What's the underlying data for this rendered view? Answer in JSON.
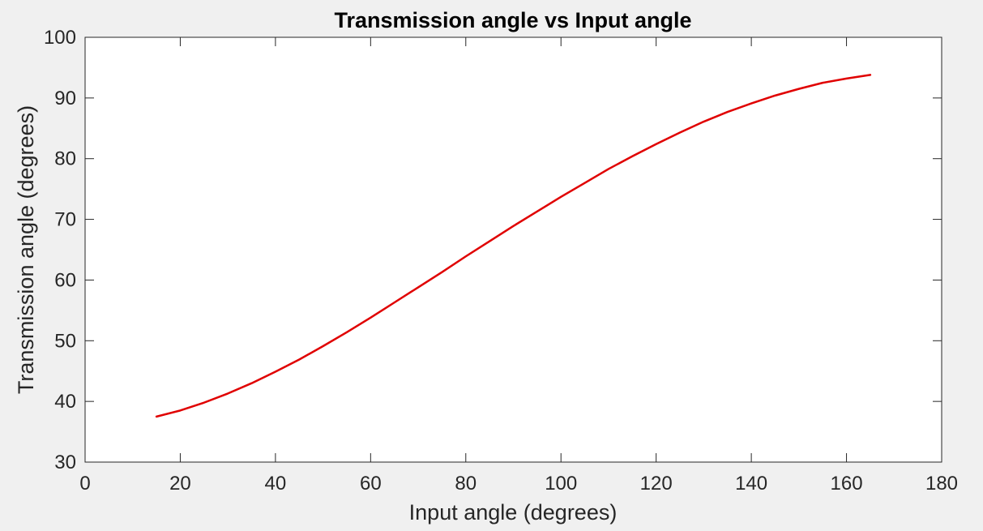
{
  "chart_data": {
    "type": "line",
    "title": "Transmission angle vs Input angle",
    "xlabel": "Input angle (degrees)",
    "ylabel": "Transmission angle (degrees)",
    "xlim": [
      0,
      180
    ],
    "ylim": [
      30,
      100
    ],
    "xticks": [
      0,
      20,
      40,
      60,
      80,
      100,
      120,
      140,
      160,
      180
    ],
    "yticks": [
      30,
      40,
      50,
      60,
      70,
      80,
      90,
      100
    ],
    "grid": false,
    "series": [
      {
        "color": "#e00000",
        "x": [
          15,
          20,
          25,
          30,
          35,
          40,
          45,
          50,
          55,
          60,
          65,
          70,
          75,
          80,
          85,
          90,
          95,
          100,
          105,
          110,
          115,
          120,
          125,
          130,
          135,
          140,
          145,
          150,
          155,
          160,
          165
        ],
        "y": [
          37.5,
          38.5,
          39.8,
          41.3,
          43.0,
          44.9,
          46.9,
          49.1,
          51.4,
          53.8,
          56.3,
          58.8,
          61.3,
          63.9,
          66.4,
          68.9,
          71.3,
          73.7,
          76.0,
          78.3,
          80.4,
          82.4,
          84.3,
          86.1,
          87.7,
          89.1,
          90.4,
          91.5,
          92.5,
          93.2,
          93.8
        ]
      }
    ]
  }
}
